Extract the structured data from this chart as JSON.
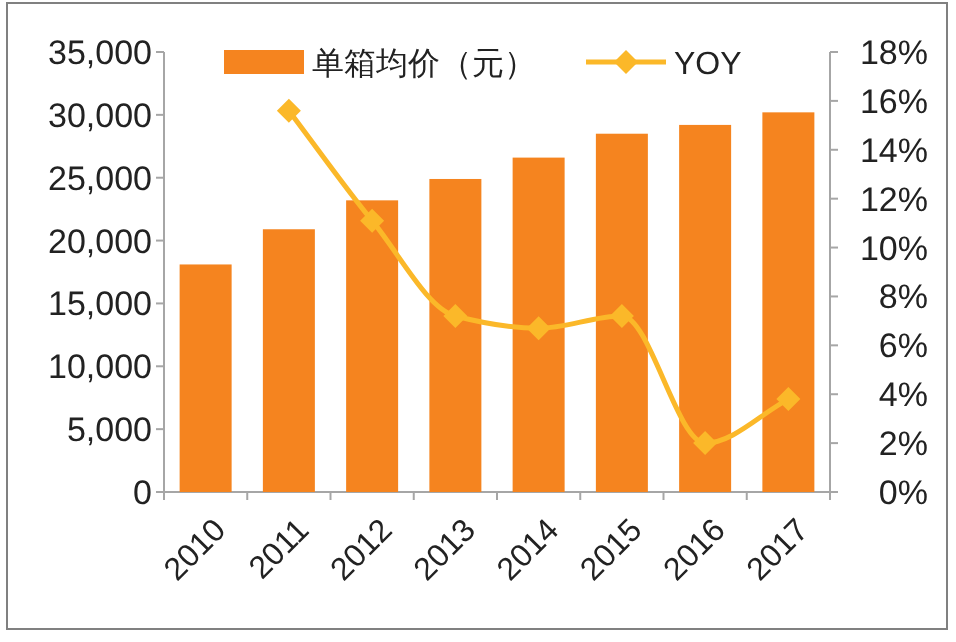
{
  "chart_data": {
    "type": "bar",
    "categories": [
      "2010",
      "2011",
      "2012",
      "2013",
      "2014",
      "2015",
      "2016",
      "2017"
    ],
    "series": [
      {
        "name": "单箱均价（元）",
        "color": "#f5841f",
        "values": [
          18100,
          20900,
          23200,
          24900,
          26600,
          28500,
          29200,
          30200
        ]
      },
      {
        "name": "YOY",
        "type": "line",
        "axis": "y2",
        "color": "#fbb829",
        "marker": "diamond",
        "values": [
          null,
          15.6,
          11.1,
          7.2,
          6.7,
          7.2,
          2.0,
          3.8
        ]
      }
    ],
    "ylim": [
      0,
      35000
    ],
    "yticks": [
      {
        "value": 0,
        "label": "0"
      },
      {
        "value": 5000,
        "label": "5,000"
      },
      {
        "value": 10000,
        "label": "10,000"
      },
      {
        "value": 15000,
        "label": "15,000"
      },
      {
        "value": 20000,
        "label": "20,000"
      },
      {
        "value": 25000,
        "label": "25,000"
      },
      {
        "value": 30000,
        "label": "30,000"
      },
      {
        "value": 35000,
        "label": "35,000"
      }
    ],
    "y2lim": [
      0,
      18
    ],
    "y2ticks": [
      {
        "value": 0,
        "label": "0%"
      },
      {
        "value": 2,
        "label": "2%"
      },
      {
        "value": 4,
        "label": "4%"
      },
      {
        "value": 6,
        "label": "6%"
      },
      {
        "value": 8,
        "label": "8%"
      },
      {
        "value": 10,
        "label": "10%"
      },
      {
        "value": 12,
        "label": "12%"
      },
      {
        "value": 14,
        "label": "14%"
      },
      {
        "value": 16,
        "label": "16%"
      },
      {
        "value": 18,
        "label": "18%"
      }
    ],
    "legend": "top",
    "grid": false
  }
}
